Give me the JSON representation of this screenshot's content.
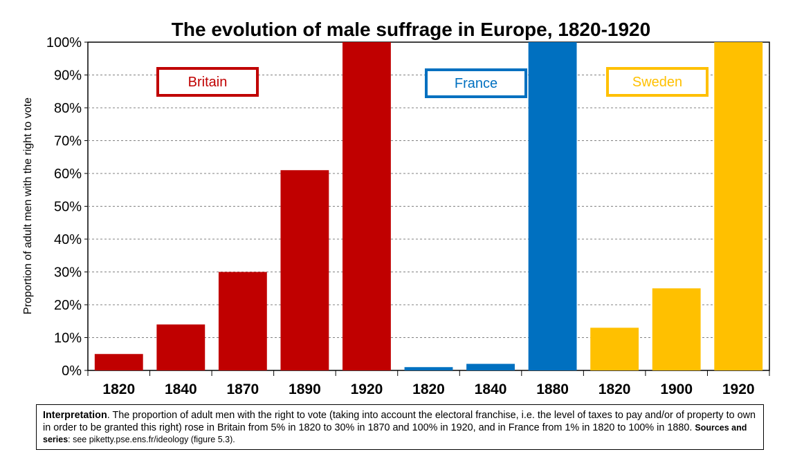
{
  "chart_data": {
    "type": "bar",
    "title": "The evolution of male suffrage in Europe, 1820-1920",
    "ylabel": "Proportion of adult men with the right to vote",
    "ylim": [
      0,
      100
    ],
    "yticks": [
      "0%",
      "10%",
      "20%",
      "30%",
      "40%",
      "50%",
      "60%",
      "70%",
      "80%",
      "90%",
      "100%"
    ],
    "grid": "horizontal dashed",
    "groups": [
      {
        "name": "Britain",
        "color": "#C00000",
        "categories": [
          "1820",
          "1840",
          "1870",
          "1890",
          "1920"
        ],
        "values": [
          5,
          14,
          30,
          61,
          100
        ]
      },
      {
        "name": "France",
        "color": "#0070C0",
        "categories": [
          "1820",
          "1840",
          "1880"
        ],
        "values": [
          1,
          2,
          100
        ]
      },
      {
        "name": "Sweden",
        "color": "#FFC000",
        "categories": [
          "1820",
          "1900",
          "1920"
        ],
        "values": [
          13,
          25,
          100
        ]
      }
    ]
  },
  "note": {
    "interpretation_label": "Interpretation",
    "interpretation_text": ". The proportion of adult men with the right to vote (taking into account the electoral franchise, i.e. the level of taxes to pay and/or of property to own in order to be granted this right) rose in Britain from 5% in 1820 to 30% in 1870 and 100% in 1920, and in France from 1% in 1820 to 100% in 1880.  ",
    "sources_label": "Sources and series",
    "sources_text": ": see piketty.pse.ens.fr/ideology (figure 5.3)."
  }
}
